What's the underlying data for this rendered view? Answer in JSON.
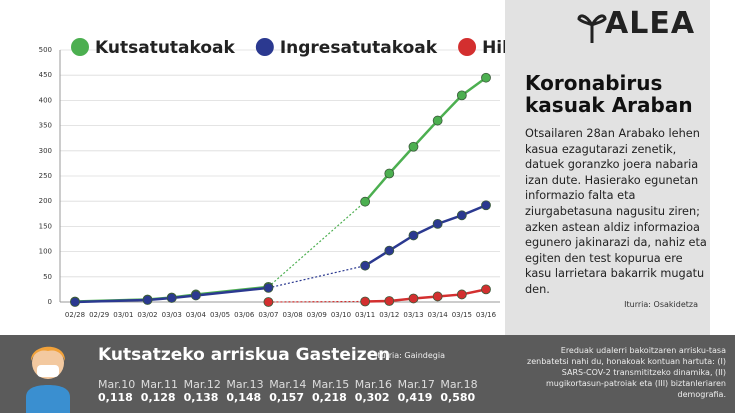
{
  "chart_data": {
    "type": "line",
    "categories": [
      "02/28",
      "02/29",
      "03/01",
      "03/02",
      "03/03",
      "03/04",
      "03/05",
      "03/06",
      "03/07",
      "03/08",
      "03/09",
      "03/10",
      "03/11",
      "03/12",
      "03/13",
      "03/14",
      "03/15",
      "03/16"
    ],
    "series": [
      {
        "name": "Kutsatutakoak",
        "color": "#4caf50",
        "values": [
          1,
          null,
          null,
          5,
          9,
          15,
          null,
          null,
          30,
          null,
          null,
          null,
          199,
          255,
          308,
          360,
          410,
          445
        ]
      },
      {
        "name": "Ingresatutakoak",
        "color": "#2b3990",
        "values": [
          0,
          null,
          null,
          4,
          8,
          13,
          null,
          null,
          28,
          null,
          null,
          null,
          72,
          102,
          132,
          155,
          172,
          192
        ]
      },
      {
        "name": "Hildakoak",
        "color": "#d32f2f",
        "values": [
          null,
          null,
          null,
          null,
          null,
          null,
          null,
          null,
          0,
          null,
          null,
          null,
          1,
          2,
          7,
          11,
          15,
          25
        ]
      }
    ],
    "ylim": [
      0,
      500
    ],
    "yticks": [
      0,
      50,
      100,
      150,
      200,
      250,
      300,
      350,
      400,
      450,
      500
    ],
    "grid": true
  },
  "panel": {
    "logo": "ALEA",
    "title": "Koronabirus kasuak Araban",
    "body": "Otsailaren 28an Arabako lehen kasua ezagutarazi zenetik, datuek goranzko joera nabaria izan dute. Hasierako egunetan informazio falta eta ziurgabetasuna nagusitu ziren; azken astean aldiz informazioa egunero jakinarazi da, nahiz eta egiten den test kopurua ere kasu larrietara bakarrik mugatu den.",
    "source": "Iturria: Osakidetza"
  },
  "risk": {
    "title": "Kutsatzeko arriskua Gasteizen",
    "source": "Iturria: Gaindegia",
    "dates": [
      "Mar.10",
      "Mar.11",
      "Mar.12",
      "Mar.13",
      "Mar.14",
      "Mar.15",
      "Mar.16",
      "Mar.17",
      "Mar.18"
    ],
    "values": [
      "0,118",
      "0,128",
      "0,138",
      "0,148",
      "0,157",
      "0,218",
      "0,302",
      "0,419",
      "0,580"
    ],
    "note": "Ereduak udalerri bakoitzaren arrisku-tasa zenbatetsi nahi du, honakoak kontuan hartuta: (I) SARS-COV-2 transmititzeko dinamika, (II) mugikortasun-patroiak eta (III) biztanleriaren demografia."
  }
}
